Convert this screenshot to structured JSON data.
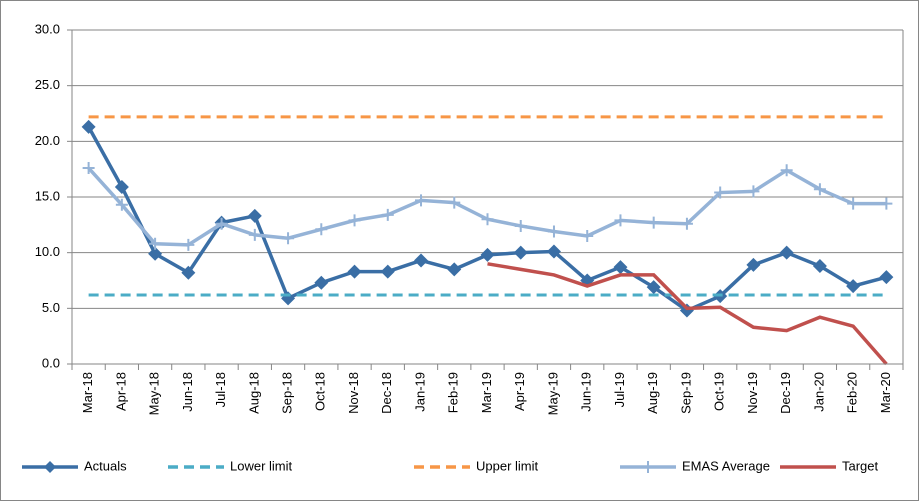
{
  "chart_data": {
    "type": "line",
    "categories": [
      "Mar-18",
      "Apr-18",
      "May-18",
      "Jun-18",
      "Jul-18",
      "Aug-18",
      "Sep-18",
      "Oct-18",
      "Nov-18",
      "Dec-18",
      "Jan-19",
      "Feb-19",
      "Mar-19",
      "Apr-19",
      "May-19",
      "Jun-19",
      "Jul-19",
      "Aug-19",
      "Sep-19",
      "Oct-19",
      "Nov-19",
      "Dec-19",
      "Jan-20",
      "Feb-20",
      "Mar-20"
    ],
    "series": [
      {
        "name": "Actuals",
        "color": "#3a6ea5",
        "marker": "diamond",
        "values": [
          21.3,
          15.9,
          9.9,
          8.2,
          12.7,
          13.3,
          5.9,
          7.3,
          8.3,
          8.3,
          9.3,
          8.5,
          9.8,
          10.0,
          10.1,
          7.5,
          8.7,
          6.9,
          4.8,
          6.1,
          8.9,
          10.0,
          8.8,
          7.0,
          7.8
        ]
      },
      {
        "name": "Lower limit",
        "color": "#4bacc6",
        "dashed": true,
        "values": [
          6.2,
          6.2,
          6.2,
          6.2,
          6.2,
          6.2,
          6.2,
          6.2,
          6.2,
          6.2,
          6.2,
          6.2,
          6.2,
          6.2,
          6.2,
          6.2,
          6.2,
          6.2,
          6.2,
          6.2,
          6.2,
          6.2,
          6.2,
          6.2,
          6.2
        ]
      },
      {
        "name": "Upper limit",
        "color": "#f79646",
        "dashed": true,
        "values": [
          22.2,
          22.2,
          22.2,
          22.2,
          22.2,
          22.2,
          22.2,
          22.2,
          22.2,
          22.2,
          22.2,
          22.2,
          22.2,
          22.2,
          22.2,
          22.2,
          22.2,
          22.2,
          22.2,
          22.2,
          22.2,
          22.2,
          22.2,
          22.2,
          22.2
        ]
      },
      {
        "name": "EMAS Average",
        "color": "#95b3d7",
        "marker": "plus",
        "values": [
          17.6,
          14.3,
          10.8,
          10.7,
          12.6,
          11.6,
          11.3,
          12.1,
          12.9,
          13.4,
          14.7,
          14.5,
          13.0,
          12.4,
          11.9,
          11.5,
          12.9,
          12.7,
          12.6,
          15.4,
          15.5,
          17.4,
          15.7,
          14.4,
          14.4
        ]
      },
      {
        "name": "Target",
        "color": "#c0504d",
        "values": [
          null,
          null,
          null,
          null,
          null,
          null,
          null,
          null,
          null,
          null,
          null,
          null,
          9.0,
          8.5,
          8.0,
          7.0,
          8.0,
          8.0,
          5.0,
          5.1,
          3.3,
          3.0,
          4.2,
          3.4,
          0.0
        ]
      }
    ],
    "ylim": [
      0,
      30
    ],
    "yticks": [
      {
        "value": 0,
        "label": "0.0"
      },
      {
        "value": 5,
        "label": "5.0"
      },
      {
        "value": 10,
        "label": "10.0"
      },
      {
        "value": 15,
        "label": "15.0"
      },
      {
        "value": 20,
        "label": "20.0"
      },
      {
        "value": 25,
        "label": "25.0"
      },
      {
        "value": 30,
        "label": "30.0"
      }
    ],
    "grid": true,
    "legend": "bottom"
  }
}
